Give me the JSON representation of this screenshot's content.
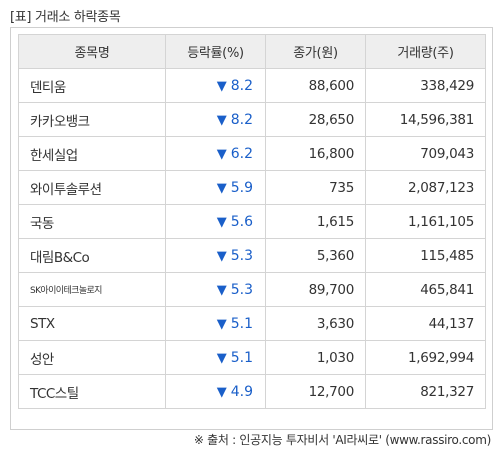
{
  "title": "[표] 거래소 하락종목",
  "colors": {
    "down": "#1a5fc9",
    "header_bg": "#eeeeee",
    "border": "#d4d4d4"
  },
  "table": {
    "headers": [
      "종목명",
      "등락률(%)",
      "종가(원)",
      "거래량(주)"
    ],
    "down_symbol": "▼",
    "rows": [
      {
        "name": "덴티움",
        "rate": "8.2",
        "price": "88,600",
        "volume": "338,429"
      },
      {
        "name": "카카오뱅크",
        "rate": "8.2",
        "price": "28,650",
        "volume": "14,596,381"
      },
      {
        "name": "한세실업",
        "rate": "6.2",
        "price": "16,800",
        "volume": "709,043"
      },
      {
        "name": "와이투솔루션",
        "rate": "5.9",
        "price": "735",
        "volume": "2,087,123"
      },
      {
        "name": "국동",
        "rate": "5.6",
        "price": "1,615",
        "volume": "1,161,105"
      },
      {
        "name": "대림B&Co",
        "rate": "5.3",
        "price": "5,360",
        "volume": "115,485"
      },
      {
        "name": "SK아이이테크놀로지",
        "rate": "5.3",
        "price": "89,700",
        "volume": "465,841",
        "small": true
      },
      {
        "name": "STX",
        "rate": "5.1",
        "price": "3,630",
        "volume": "44,137"
      },
      {
        "name": "성안",
        "rate": "5.1",
        "price": "1,030",
        "volume": "1,692,994"
      },
      {
        "name": "TCC스틸",
        "rate": "4.9",
        "price": "12,700",
        "volume": "821,327"
      }
    ]
  },
  "source": "※ 출처 : 인공지능 투자비서 'AI라씨로' (www.rassiro.com)"
}
